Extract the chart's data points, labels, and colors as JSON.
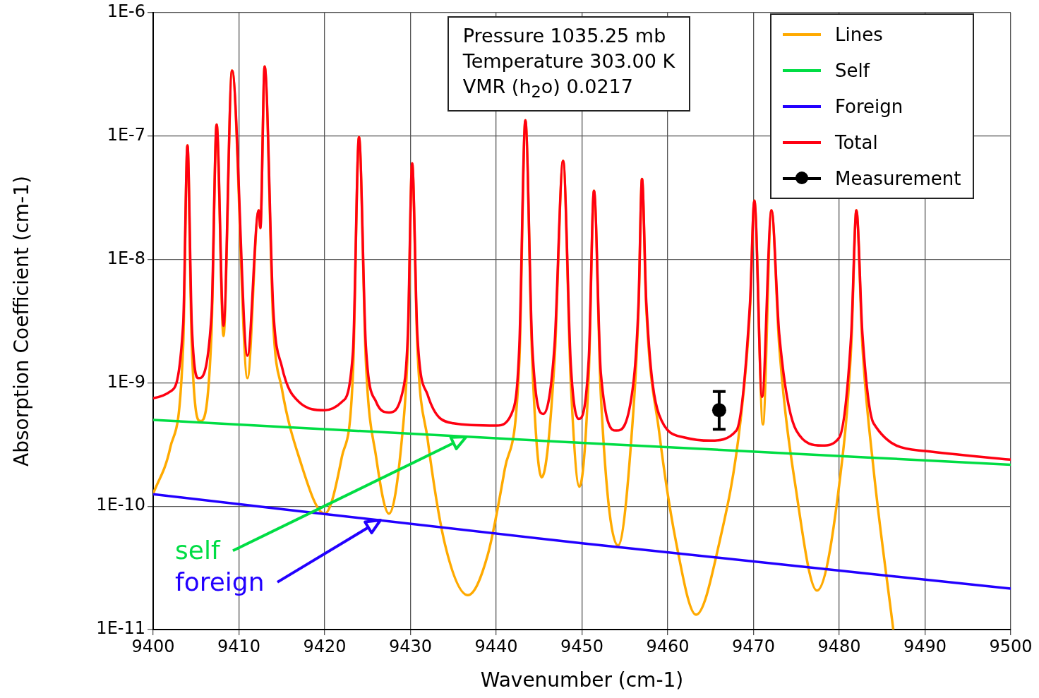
{
  "chart_data": {
    "type": "line",
    "xlabel": "Wavenumber (cm-1)",
    "ylabel": "Absorption Coefficient (cm-1)",
    "xlim": [
      9400,
      9500
    ],
    "xticks": [
      9400,
      9410,
      9420,
      9430,
      9440,
      9450,
      9460,
      9470,
      9480,
      9490,
      9500
    ],
    "ylim": [
      1e-11,
      1e-06
    ],
    "yticks": [
      {
        "value": 1e-11,
        "label": "1E-11"
      },
      {
        "value": 1e-10,
        "label": "1E-10"
      },
      {
        "value": 1e-09,
        "label": "1E-9"
      },
      {
        "value": 1e-08,
        "label": "1E-8"
      },
      {
        "value": 1e-07,
        "label": "1E-7"
      },
      {
        "value": 1e-06,
        "label": "1E-6"
      }
    ],
    "log": "y",
    "grid": true,
    "legend": "top right",
    "line_style": "solid",
    "annotations": [
      "Pressure 1035.25 mb",
      "Temperature 303.00 K",
      "VMR (h$_{2}$o) 0.0217",
      "self",
      "foreign"
    ],
    "series": [
      {
        "name": "Lines",
        "color": "#ffaa00",
        "x": [
          9400,
          9402,
          9403.5,
          9404,
          9404.5,
          9405.5,
          9406.8,
          9407.4,
          9408.2,
          9409.2,
          9411,
          9412.3,
          9412.5,
          9413,
          9414,
          9415,
          9417,
          9420,
          9422,
          9423.3,
          9424,
          9424.8,
          9426,
          9427.5,
          9429,
          9429.7,
          9430.2,
          9430.8,
          9432,
          9434,
          9436.7,
          9439,
          9441,
          9442.7,
          9443.4,
          9444.2,
          9445.3,
          9446.8,
          9447.8,
          9448.7,
          9449.7,
          9450.8,
          9451.4,
          9452.2,
          9454.2,
          9456,
          9456.6,
          9457,
          9457.5,
          9459,
          9461,
          9463.3,
          9466,
          9468.5,
          9469.6,
          9470.1,
          9471.1,
          9472.1,
          9473,
          9475,
          9477.4,
          9480,
          9481.4,
          9482,
          9482.7,
          9484,
          9486.3
        ],
        "values": [
          1.26e-10,
          3e-10,
          2e-09,
          8.4e-08,
          2e-09,
          4.9e-10,
          2.5e-09,
          1.24e-07,
          2.4e-09,
          3.4e-07,
          1.09e-09,
          2.5e-08,
          1.8e-08,
          3.66e-07,
          3e-09,
          9e-10,
          2.5e-10,
          8.7e-11,
          2.5e-10,
          1.2e-09,
          9.8e-08,
          1.5e-09,
          2.5e-10,
          8.7e-11,
          3.5e-10,
          2e-09,
          6e-08,
          2e-09,
          3.5e-10,
          5e-11,
          1.9e-11,
          4e-11,
          2e-10,
          1.5e-09,
          1.34e-07,
          1.5e-09,
          1.71e-10,
          1.5e-09,
          6.3e-08,
          1e-09,
          1.44e-10,
          1.2e-09,
          3.6e-08,
          8e-10,
          4.8e-11,
          6e-10,
          4e-09,
          4.5e-08,
          4e-09,
          4e-10,
          5e-11,
          1.32e-11,
          5e-11,
          5e-10,
          4e-09,
          3e-08,
          4.6e-10,
          2.5e-08,
          2e-09,
          1.3e-10,
          2.07e-11,
          1.5e-10,
          2e-09,
          2.5e-08,
          2e-09,
          2e-10,
          1e-11
        ]
      },
      {
        "name": "Self",
        "color": "#00dd44",
        "x": [
          9400,
          9450,
          9500
        ],
        "values": [
          5e-10,
          3.26e-10,
          2.17e-10
        ]
      },
      {
        "name": "Foreign",
        "color": "#2200ff",
        "x": [
          9400,
          9450,
          9500
        ],
        "values": [
          1.25e-10,
          5e-11,
          2.15e-11
        ]
      },
      {
        "name": "Total",
        "color": "#ff0011",
        "x": [
          9400,
          9402,
          9403.5,
          9404,
          9404.5,
          9405.3,
          9406.8,
          9407.4,
          9408.2,
          9409.2,
          9411,
          9412.3,
          9412.5,
          9413,
          9414,
          9415,
          9417,
          9420,
          9422,
          9423.3,
          9424,
          9424.8,
          9426,
          9427.5,
          9429,
          9429.7,
          9430.2,
          9430.8,
          9432,
          9435,
          9440,
          9442,
          9442.7,
          9443.4,
          9444.2,
          9445.5,
          9446.8,
          9447.8,
          9448.7,
          9449.6,
          9450.8,
          9451.4,
          9452.2,
          9454,
          9456,
          9456.6,
          9457,
          9457.5,
          9459,
          9462,
          9465,
          9468,
          9469.6,
          9470.1,
          9471,
          9472.1,
          9473,
          9475,
          9478,
          9480,
          9481.4,
          9482,
          9482.7,
          9484,
          9490,
          9500
        ],
        "values": [
          7.5e-10,
          8.5e-10,
          3e-09,
          8.4e-08,
          3e-09,
          1.09e-09,
          3.5e-09,
          1.24e-07,
          2.9e-09,
          3.4e-07,
          1.66e-09,
          2.5e-08,
          1.8e-08,
          3.66e-07,
          4e-09,
          1.36e-09,
          7e-10,
          6e-10,
          7e-10,
          1.8e-09,
          9.8e-08,
          2e-09,
          7e-10,
          5.75e-10,
          8e-10,
          2.5e-09,
          6e-08,
          2.5e-09,
          8e-10,
          4.7e-10,
          4.5e-10,
          6.1e-10,
          2e-09,
          1.34e-07,
          2e-09,
          5.6e-10,
          2e-09,
          6.3e-08,
          1.4e-09,
          5.1e-10,
          1.6e-09,
          3.6e-08,
          1.2e-09,
          4.1e-10,
          1e-09,
          4.5e-09,
          4.5e-08,
          4.5e-09,
          5.5e-10,
          3.6e-10,
          3.4e-10,
          4.1e-10,
          4.5e-09,
          3e-08,
          7.7e-10,
          2.5e-08,
          2.5e-09,
          4.1e-10,
          3.1e-10,
          3.6e-10,
          2.5e-09,
          2.5e-08,
          2.5e-09,
          4.7e-10,
          2.8e-10,
          2.38e-10
        ]
      },
      {
        "name": "Measurement",
        "type": "scatter",
        "marker": "circle",
        "color": "#000000",
        "x": [
          9466
        ],
        "values": [
          6e-10
        ],
        "errors": [
          [
            4.2e-10,
            8.5e-10
          ]
        ]
      }
    ]
  }
}
